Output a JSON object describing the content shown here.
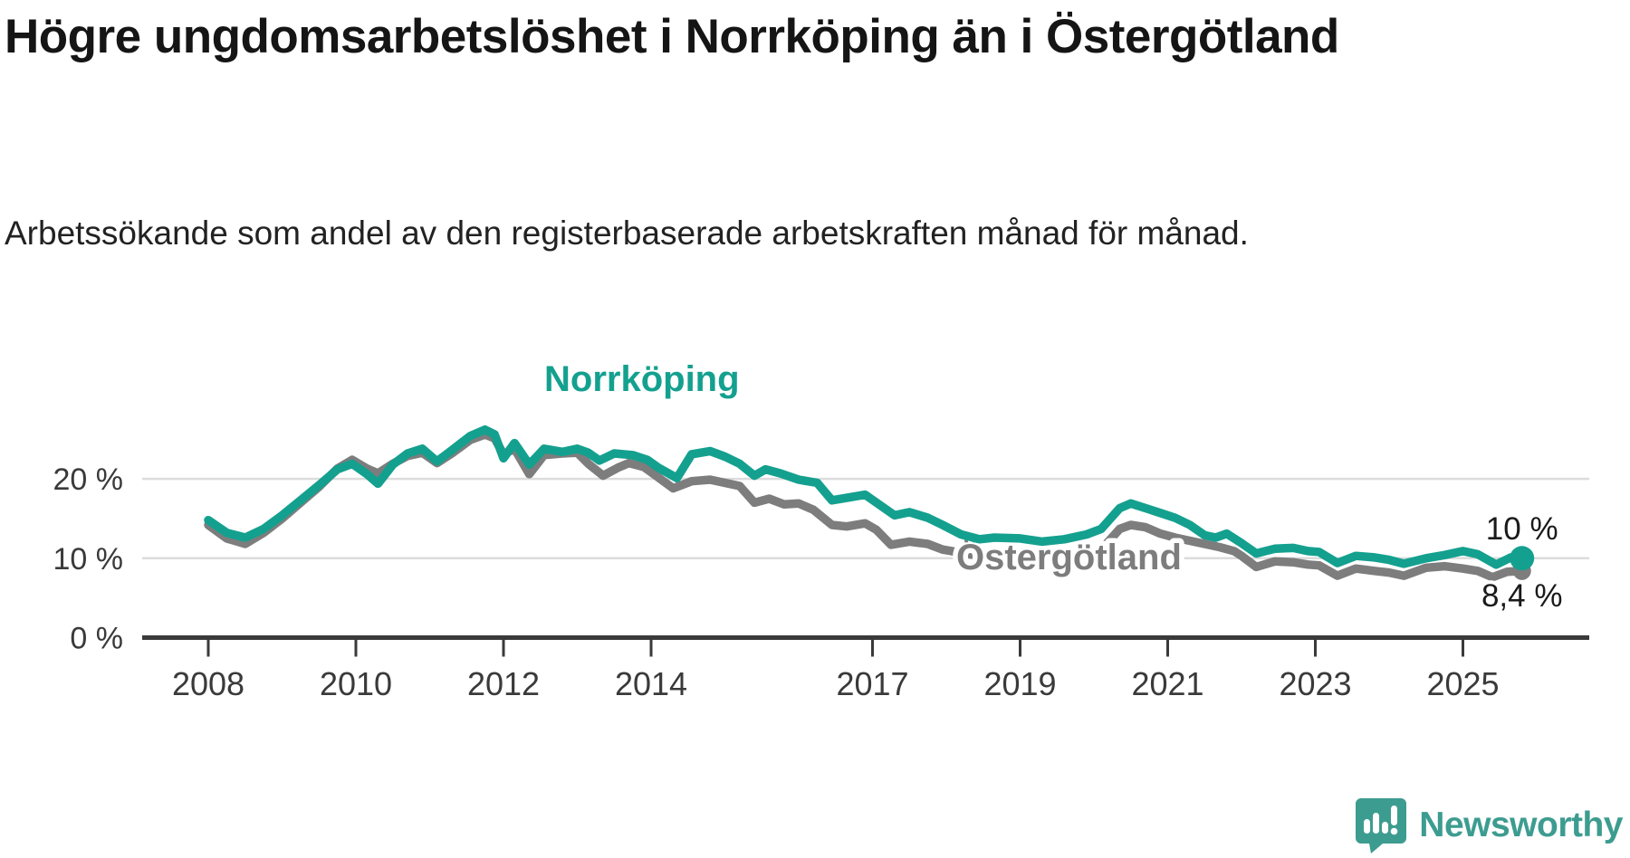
{
  "page": {
    "title": "Högre ungdomsarbetslöshet i Norrköping än i Östergötland",
    "subtitle": "Arbetssökande som andel av den registerbaserade arbetskraften månad för månad.",
    "background_color": "#ffffff"
  },
  "branding": {
    "name": "Newsworthy",
    "logo_icon": "newsworthy-speech-bubble-bars-icon",
    "color": "#3d9c90"
  },
  "chart_data": {
    "type": "line",
    "title": "Högre ungdomsarbetslöshet i Norrköping än i Östergötland",
    "xlabel": "",
    "ylabel": "",
    "x_axis": {
      "tick_years": [
        2008,
        2010,
        2012,
        2014,
        2017,
        2019,
        2021,
        2023,
        2025
      ],
      "range": [
        2008,
        2025.8
      ]
    },
    "y_axis": {
      "ticks": [
        {
          "value": 0,
          "label": "0 %"
        },
        {
          "value": 10,
          "label": "10 %"
        },
        {
          "value": 20,
          "label": "20 %"
        }
      ],
      "gridline_values": [
        10,
        20
      ],
      "range": [
        0,
        28
      ],
      "unit": "%"
    },
    "axis_color": "#3a3a3a",
    "gridline_color": "#dcdcdc",
    "series": [
      {
        "name": "Östergötland",
        "color": "#7d7d7d",
        "end_label": "8,4 %",
        "end_value": 8.4,
        "end_dot": true,
        "label_halo": true,
        "points": [
          [
            2008.0,
            14.2
          ],
          [
            2008.25,
            12.5
          ],
          [
            2008.5,
            11.8
          ],
          [
            2008.75,
            13.2
          ],
          [
            2009.0,
            15.0
          ],
          [
            2009.25,
            17.0
          ],
          [
            2009.5,
            19.0
          ],
          [
            2009.75,
            21.3
          ],
          [
            2009.95,
            22.4
          ],
          [
            2010.15,
            21.3
          ],
          [
            2010.3,
            20.7
          ],
          [
            2010.5,
            21.9
          ],
          [
            2010.7,
            22.9
          ],
          [
            2010.9,
            23.3
          ],
          [
            2011.1,
            22.0
          ],
          [
            2011.3,
            23.2
          ],
          [
            2011.55,
            24.9
          ],
          [
            2011.75,
            25.6
          ],
          [
            2011.88,
            25.1
          ],
          [
            2012.0,
            23.1
          ],
          [
            2012.15,
            23.8
          ],
          [
            2012.35,
            20.6
          ],
          [
            2012.55,
            23.0
          ],
          [
            2012.8,
            23.2
          ],
          [
            2013.0,
            23.3
          ],
          [
            2013.15,
            21.9
          ],
          [
            2013.35,
            20.4
          ],
          [
            2013.55,
            21.4
          ],
          [
            2013.7,
            22.0
          ],
          [
            2013.9,
            21.5
          ],
          [
            2014.05,
            20.5
          ],
          [
            2014.3,
            18.8
          ],
          [
            2014.55,
            19.7
          ],
          [
            2014.8,
            19.9
          ],
          [
            2015.0,
            19.5
          ],
          [
            2015.2,
            19.1
          ],
          [
            2015.4,
            17.0
          ],
          [
            2015.6,
            17.5
          ],
          [
            2015.8,
            16.8
          ],
          [
            2016.0,
            16.9
          ],
          [
            2016.2,
            16.1
          ],
          [
            2016.45,
            14.2
          ],
          [
            2016.65,
            14.0
          ],
          [
            2016.9,
            14.4
          ],
          [
            2017.05,
            13.6
          ],
          [
            2017.25,
            11.7
          ],
          [
            2017.5,
            12.1
          ],
          [
            2017.75,
            11.8
          ],
          [
            2017.95,
            11.1
          ],
          [
            2018.2,
            10.7
          ],
          [
            2018.45,
            10.3
          ],
          [
            2018.7,
            10.3
          ],
          [
            2019.0,
            10.0
          ],
          [
            2019.3,
            10.4
          ],
          [
            2019.6,
            10.3
          ],
          [
            2019.9,
            10.7
          ],
          [
            2020.1,
            11.1
          ],
          [
            2020.35,
            13.7
          ],
          [
            2020.5,
            14.2
          ],
          [
            2020.7,
            13.9
          ],
          [
            2020.9,
            13.1
          ],
          [
            2021.1,
            12.6
          ],
          [
            2021.3,
            12.2
          ],
          [
            2021.5,
            11.8
          ],
          [
            2021.7,
            11.4
          ],
          [
            2021.9,
            10.9
          ],
          [
            2022.0,
            10.3
          ],
          [
            2022.2,
            8.9
          ],
          [
            2022.45,
            9.6
          ],
          [
            2022.7,
            9.5
          ],
          [
            2022.9,
            9.2
          ],
          [
            2023.05,
            9.1
          ],
          [
            2023.3,
            7.8
          ],
          [
            2023.55,
            8.7
          ],
          [
            2023.8,
            8.4
          ],
          [
            2024.0,
            8.2
          ],
          [
            2024.2,
            7.8
          ],
          [
            2024.5,
            8.8
          ],
          [
            2024.75,
            9.0
          ],
          [
            2025.0,
            8.7
          ],
          [
            2025.2,
            8.4
          ],
          [
            2025.4,
            7.6
          ],
          [
            2025.6,
            8.3
          ],
          [
            2025.8,
            8.4
          ]
        ]
      },
      {
        "name": "Norrköping",
        "color": "#14a08f",
        "end_label": "10 %",
        "end_value": 10,
        "end_dot": true,
        "label_halo": false,
        "points": [
          [
            2008.0,
            14.8
          ],
          [
            2008.25,
            13.2
          ],
          [
            2008.5,
            12.6
          ],
          [
            2008.75,
            13.7
          ],
          [
            2009.0,
            15.4
          ],
          [
            2009.25,
            17.3
          ],
          [
            2009.5,
            19.2
          ],
          [
            2009.75,
            21.2
          ],
          [
            2009.95,
            21.9
          ],
          [
            2010.15,
            20.6
          ],
          [
            2010.3,
            19.4
          ],
          [
            2010.5,
            21.8
          ],
          [
            2010.7,
            23.2
          ],
          [
            2010.9,
            23.8
          ],
          [
            2011.1,
            22.2
          ],
          [
            2011.3,
            23.6
          ],
          [
            2011.55,
            25.4
          ],
          [
            2011.75,
            26.2
          ],
          [
            2011.88,
            25.6
          ],
          [
            2012.0,
            22.6
          ],
          [
            2012.15,
            24.5
          ],
          [
            2012.35,
            21.8
          ],
          [
            2012.55,
            23.8
          ],
          [
            2012.8,
            23.4
          ],
          [
            2013.0,
            23.8
          ],
          [
            2013.15,
            23.3
          ],
          [
            2013.3,
            22.3
          ],
          [
            2013.5,
            23.2
          ],
          [
            2013.75,
            23.0
          ],
          [
            2013.95,
            22.4
          ],
          [
            2014.1,
            21.4
          ],
          [
            2014.35,
            20.1
          ],
          [
            2014.55,
            23.1
          ],
          [
            2014.8,
            23.5
          ],
          [
            2015.0,
            22.8
          ],
          [
            2015.2,
            21.9
          ],
          [
            2015.4,
            20.4
          ],
          [
            2015.55,
            21.2
          ],
          [
            2015.75,
            20.7
          ],
          [
            2016.0,
            19.9
          ],
          [
            2016.25,
            19.5
          ],
          [
            2016.45,
            17.3
          ],
          [
            2016.65,
            17.6
          ],
          [
            2016.9,
            18.0
          ],
          [
            2017.1,
            16.7
          ],
          [
            2017.3,
            15.4
          ],
          [
            2017.5,
            15.8
          ],
          [
            2017.75,
            15.1
          ],
          [
            2017.95,
            14.2
          ],
          [
            2018.2,
            13.0
          ],
          [
            2018.45,
            12.4
          ],
          [
            2018.65,
            12.6
          ],
          [
            2019.0,
            12.5
          ],
          [
            2019.3,
            12.1
          ],
          [
            2019.6,
            12.4
          ],
          [
            2019.9,
            13.0
          ],
          [
            2020.1,
            13.7
          ],
          [
            2020.35,
            16.3
          ],
          [
            2020.5,
            16.9
          ],
          [
            2020.7,
            16.3
          ],
          [
            2020.9,
            15.7
          ],
          [
            2021.1,
            15.1
          ],
          [
            2021.3,
            14.2
          ],
          [
            2021.5,
            12.9
          ],
          [
            2021.65,
            12.6
          ],
          [
            2021.8,
            13.1
          ],
          [
            2022.0,
            11.9
          ],
          [
            2022.2,
            10.6
          ],
          [
            2022.45,
            11.2
          ],
          [
            2022.7,
            11.3
          ],
          [
            2022.9,
            10.9
          ],
          [
            2023.05,
            10.8
          ],
          [
            2023.3,
            9.4
          ],
          [
            2023.55,
            10.3
          ],
          [
            2023.8,
            10.1
          ],
          [
            2024.0,
            9.8
          ],
          [
            2024.2,
            9.3
          ],
          [
            2024.5,
            10.0
          ],
          [
            2024.75,
            10.4
          ],
          [
            2025.0,
            10.9
          ],
          [
            2025.2,
            10.5
          ],
          [
            2025.45,
            9.2
          ],
          [
            2025.65,
            10.1
          ],
          [
            2025.8,
            10.0
          ]
        ]
      }
    ],
    "legend": "inline-series-labels",
    "grid": "horizontal-only"
  }
}
